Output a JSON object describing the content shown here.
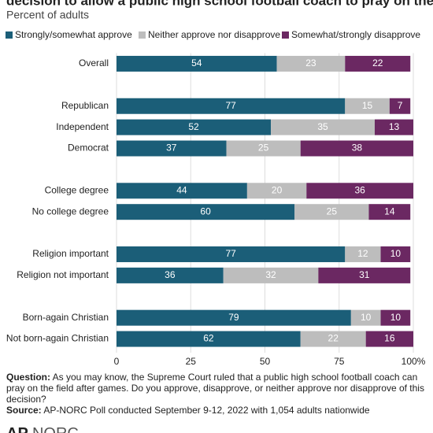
{
  "chart_data": {
    "type": "stacked-barh",
    "title": "decision to allow a public high school football coach to pray on the field.",
    "subtitle": "Percent of adults",
    "categories": [
      "Overall",
      null,
      "Republican",
      "Independent",
      "Democrat",
      null,
      "College degree",
      "No college degree",
      null,
      "Religion important",
      "Religion not important",
      null,
      "Born-again Christian",
      "Not born-again Christian"
    ],
    "series": [
      {
        "name": "Strongly/somewhat approve",
        "color": "#1b5e78",
        "values": [
          54,
          null,
          77,
          52,
          37,
          null,
          44,
          60,
          null,
          77,
          36,
          null,
          79,
          62
        ]
      },
      {
        "name": "Neither approve nor disapprove",
        "color": "#bdbdbd",
        "values": [
          23,
          null,
          15,
          35,
          25,
          null,
          20,
          25,
          null,
          12,
          32,
          null,
          10,
          22
        ]
      },
      {
        "name": "Somewhat/strongly disapprove",
        "color": "#6b2862",
        "values": [
          22,
          null,
          7,
          13,
          38,
          null,
          36,
          14,
          null,
          10,
          31,
          null,
          10,
          16
        ]
      }
    ],
    "xlim": [
      0,
      100
    ],
    "xticks": [
      0,
      25,
      50,
      75,
      {
        "value": 100,
        "label": "100%"
      }
    ],
    "grid": true,
    "note_label": "Question:",
    "note": "As you may know, the Supreme Court ruled that a public high school football coach can pray on the field after games. Do you approve, disapprove, or neither approve nor disapprove of this decision?",
    "source_label": "Source:",
    "source": "AP-NORC Poll conducted September 9-12, 2022 with 1,054 adults nationwide",
    "logo": [
      "AP",
      "NORC"
    ]
  }
}
